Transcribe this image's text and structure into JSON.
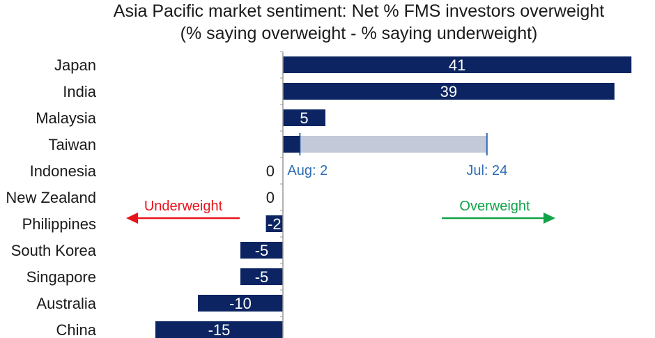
{
  "chart_data": {
    "type": "bar",
    "orientation": "horizontal",
    "title": "Asia Pacific market sentiment: Net % FMS investors overweight",
    "subtitle": "(% saying overweight - % saying underweight)",
    "categories": [
      "Japan",
      "India",
      "Malaysia",
      "Taiwan",
      "Indonesia",
      "New Zealand",
      "Philippines",
      "South Korea",
      "Singapore",
      "Australia",
      "China"
    ],
    "values": [
      41,
      39,
      5,
      2,
      0,
      0,
      -2,
      -5,
      -5,
      -10,
      -15
    ],
    "value_labels": [
      "41",
      "39",
      "5",
      "",
      "0",
      "0",
      "-2",
      "-5",
      "-5",
      "-10",
      "-15"
    ],
    "highlight": {
      "category": "Taiwan",
      "from": {
        "label": "Aug: 2",
        "value": 2
      },
      "to": {
        "label": "Jul: 24",
        "value": 24
      }
    },
    "annotations": {
      "underweight": "Underweight",
      "overweight": "Overweight"
    },
    "colors": {
      "bar": "#0c2461",
      "highlight_band": "#c3c9d9",
      "highlight_marker": "#2e6db4",
      "underweight": "#e8141c",
      "overweight": "#10a348",
      "axis": "#999999"
    },
    "grid": false,
    "legend": "none"
  }
}
